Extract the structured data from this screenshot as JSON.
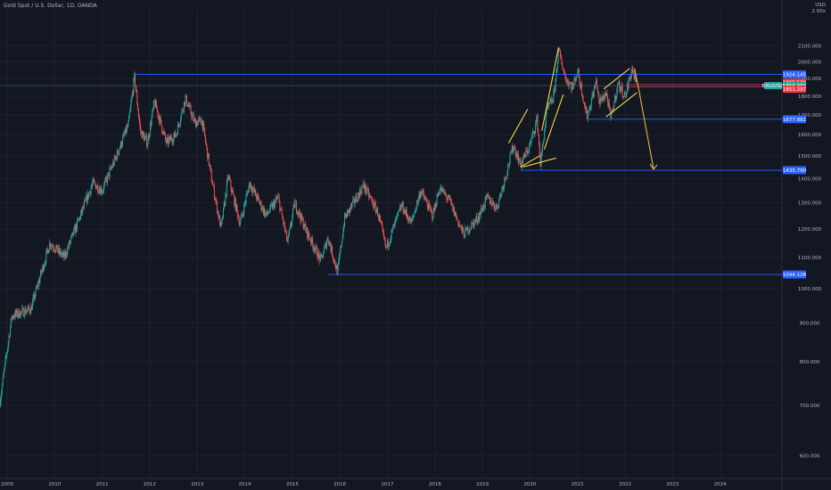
{
  "header": {
    "title": "Gold Spot / U.S. Dollar, 1D, OANDA",
    "currency": "USD",
    "scale_label": "2.00x"
  },
  "colors": {
    "background": "#131722",
    "up": "#26a69a",
    "down": "#ef5350",
    "level_line": "#2962ff",
    "drawing": "#f5d547",
    "arrow": "#f0b040",
    "tag_blue": "#2962ff",
    "tag_red": "#f23645",
    "tag_green": "#26a69a"
  },
  "chart_data": {
    "type": "candlestick",
    "y_axis": {
      "scale": "log",
      "ylim": [
        560,
        2350
      ],
      "ticks": [
        600,
        700,
        800,
        900,
        1000,
        1100,
        1200,
        1300,
        1400,
        1500,
        1600,
        1700,
        1800,
        1900,
        2000,
        2100
      ],
      "tick_labels": [
        "600.000",
        "700.000",
        "800.000",
        "900.000",
        "1000.000",
        "1100.000",
        "1200.000",
        "1300.000",
        "1400.000",
        "1500.000",
        "1600.000",
        "1700.000",
        "1800.000",
        "1900.000",
        "2000.000",
        "2100.000"
      ]
    },
    "x_axis": {
      "xlim": [
        2008.85,
        2025.3
      ],
      "ticks": [
        2009,
        2010,
        2011,
        2012,
        2013,
        2014,
        2015,
        2016,
        2017,
        2018,
        2019,
        2020,
        2021,
        2022,
        2023,
        2024
      ],
      "tick_labels": [
        "2009",
        "2010",
        "2011",
        "2012",
        "2013",
        "2014",
        "2015",
        "2016",
        "2017",
        "2018",
        "2019",
        "2020",
        "2021",
        "2022",
        "2023",
        "2024"
      ]
    },
    "price_path": [
      [
        2008.85,
        710
      ],
      [
        2009.1,
        920
      ],
      [
        2009.5,
        940
      ],
      [
        2009.9,
        1150
      ],
      [
        2010.2,
        1100
      ],
      [
        2010.5,
        1230
      ],
      [
        2010.8,
        1380
      ],
      [
        2011.0,
        1350
      ],
      [
        2011.3,
        1500
      ],
      [
        2011.55,
        1650
      ],
      [
        2011.68,
        1910
      ],
      [
        2011.8,
        1620
      ],
      [
        2011.95,
        1560
      ],
      [
        2012.1,
        1770
      ],
      [
        2012.35,
        1560
      ],
      [
        2012.55,
        1600
      ],
      [
        2012.75,
        1790
      ],
      [
        2012.95,
        1660
      ],
      [
        2013.1,
        1670
      ],
      [
        2013.3,
        1400
      ],
      [
        2013.5,
        1200
      ],
      [
        2013.65,
        1410
      ],
      [
        2013.9,
        1220
      ],
      [
        2014.1,
        1380
      ],
      [
        2014.45,
        1250
      ],
      [
        2014.7,
        1320
      ],
      [
        2014.9,
        1150
      ],
      [
        2015.05,
        1300
      ],
      [
        2015.3,
        1190
      ],
      [
        2015.6,
        1090
      ],
      [
        2015.75,
        1170
      ],
      [
        2015.95,
        1050
      ],
      [
        2016.1,
        1240
      ],
      [
        2016.5,
        1370
      ],
      [
        2016.8,
        1260
      ],
      [
        2016.97,
        1130
      ],
      [
        2017.3,
        1290
      ],
      [
        2017.5,
        1220
      ],
      [
        2017.7,
        1350
      ],
      [
        2017.95,
        1250
      ],
      [
        2018.1,
        1360
      ],
      [
        2018.3,
        1310
      ],
      [
        2018.6,
        1180
      ],
      [
        2018.9,
        1240
      ],
      [
        2019.1,
        1320
      ],
      [
        2019.3,
        1280
      ],
      [
        2019.5,
        1420
      ],
      [
        2019.65,
        1550
      ],
      [
        2019.8,
        1460
      ],
      [
        2020.0,
        1550
      ],
      [
        2020.15,
        1680
      ],
      [
        2020.22,
        1460
      ],
      [
        2020.35,
        1720
      ],
      [
        2020.5,
        1800
      ],
      [
        2020.6,
        2070
      ],
      [
        2020.75,
        1900
      ],
      [
        2020.9,
        1850
      ],
      [
        2021.0,
        1950
      ],
      [
        2021.2,
        1690
      ],
      [
        2021.4,
        1890
      ],
      [
        2021.45,
        1760
      ],
      [
        2021.6,
        1820
      ],
      [
        2021.7,
        1680
      ],
      [
        2021.85,
        1870
      ],
      [
        2022.0,
        1800
      ],
      [
        2022.15,
        1960
      ],
      [
        2022.25,
        1850
      ]
    ],
    "levels": [
      {
        "value": 1924.145,
        "label": "1924.145",
        "start": 2011.68
      },
      {
        "value": 1677.882,
        "label": "1677.882",
        "start": 2021.2
      },
      {
        "value": 1435.79,
        "label": "1435.790",
        "start": 2019.8
      },
      {
        "value": 1044.128,
        "label": "1044.128",
        "start": 2015.75
      }
    ],
    "price_tags": [
      {
        "value": 1865.53,
        "label": "1865.530",
        "color": "red"
      },
      {
        "value": 1858.96,
        "label": "1858.960",
        "color": "green",
        "side_label": "EAU/USD"
      },
      {
        "value": 1851.297,
        "label": "1851.297",
        "color": "red"
      }
    ],
    "trend_lines": [
      [
        [
          2019.55,
          1560
        ],
        [
          2019.95,
          1730
        ]
      ],
      [
        [
          2019.85,
          1450
        ],
        [
          2020.55,
          1490
        ]
      ],
      [
        [
          2020.25,
          1620
        ],
        [
          2020.6,
          2090
        ]
      ],
      [
        [
          2020.3,
          1530
        ],
        [
          2020.7,
          1810
        ]
      ],
      [
        [
          2021.55,
          1840
        ],
        [
          2022.1,
          1960
        ]
      ],
      [
        [
          2021.6,
          1690
        ],
        [
          2022.25,
          1820
        ]
      ],
      [
        [
          2019.8,
          1450
        ],
        [
          2020.2,
          1500
        ]
      ]
    ],
    "projection": [
      [
        2022.2,
        1960
      ],
      [
        2022.3,
        1820
      ],
      [
        2022.6,
        1440
      ]
    ]
  }
}
